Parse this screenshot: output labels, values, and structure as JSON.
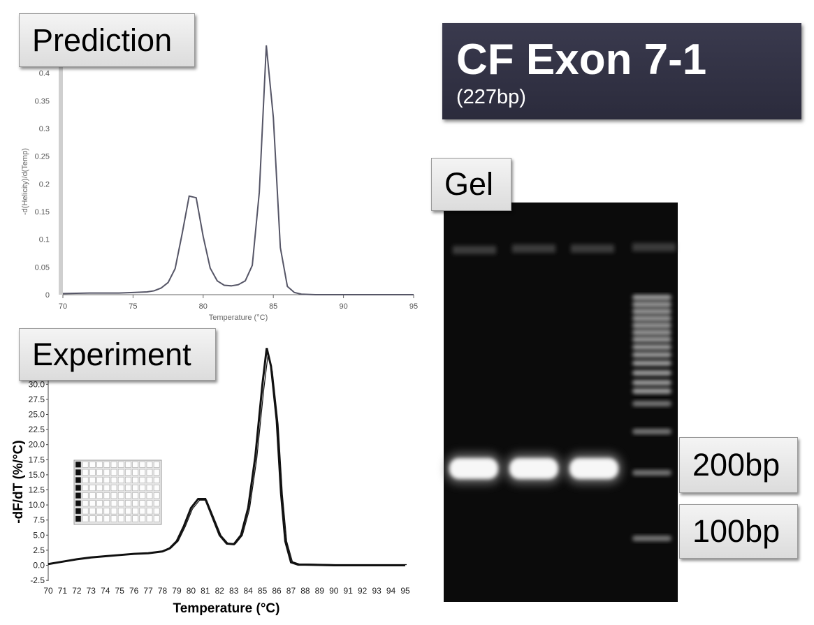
{
  "header": {
    "title": "CF Exon 7-1",
    "subtitle": "(227bp)"
  },
  "labels": {
    "prediction": "Prediction",
    "experiment": "Experiment",
    "gel": "Gel",
    "marker_200": "200bp",
    "marker_100": "100bp"
  },
  "colors": {
    "title_bg": "#32324a",
    "prediction_line": "#555566",
    "experiment_line": "#111111",
    "gel_bg": "#0b0b0b"
  },
  "chart_data": [
    {
      "type": "line",
      "name": "prediction",
      "xlabel": "Temperature (°C)",
      "ylabel": "-d(Helicity)/d(Temp)",
      "xlim": [
        70,
        95
      ],
      "ylim": [
        0,
        0.45
      ],
      "x_ticks": [
        "70",
        "75",
        "80",
        "85",
        "90",
        "95"
      ],
      "y_ticks": [
        "0",
        "0.05",
        "0.1",
        "0.15",
        "0.2",
        "0.25",
        "0.3",
        "0.35",
        "0.4"
      ],
      "grid": false,
      "x": [
        70,
        72,
        74,
        75,
        76,
        76.5,
        77,
        77.5,
        78,
        78.5,
        79,
        79.5,
        80,
        80.5,
        81,
        81.5,
        82,
        82.5,
        83,
        83.5,
        84,
        84.5,
        85,
        85.5,
        86,
        86.5,
        87,
        88,
        90,
        95
      ],
      "y": [
        0.002,
        0.003,
        0.003,
        0.004,
        0.005,
        0.007,
        0.012,
        0.022,
        0.047,
        0.11,
        0.178,
        0.175,
        0.105,
        0.048,
        0.025,
        0.017,
        0.016,
        0.018,
        0.025,
        0.053,
        0.185,
        0.45,
        0.32,
        0.085,
        0.015,
        0.004,
        0.001,
        0,
        0,
        0
      ]
    },
    {
      "type": "line",
      "name": "experiment",
      "xlabel": "Temperature (°C)",
      "ylabel": "-dF/dT (%/°C)",
      "xlim": [
        70,
        95
      ],
      "ylim": [
        -2.5,
        30
      ],
      "x_ticks": [
        "70",
        "71",
        "72",
        "73",
        "74",
        "75",
        "76",
        "77",
        "78",
        "79",
        "80",
        "81",
        "82",
        "83",
        "84",
        "85",
        "86",
        "87",
        "88",
        "89",
        "90",
        "91",
        "92",
        "93",
        "94",
        "95"
      ],
      "y_ticks": [
        "-2.5",
        "0.0",
        "2.5",
        "5.0",
        "7.5",
        "10.0",
        "12.5",
        "15.0",
        "17.5",
        "20.0",
        "22.5",
        "25.0",
        "27.5",
        "30.0"
      ],
      "grid": false,
      "x": [
        70,
        71,
        72,
        73,
        74,
        75,
        76,
        77,
        78,
        78.5,
        79,
        79.5,
        80,
        80.5,
        81,
        81.5,
        82,
        82.5,
        83,
        83.5,
        84,
        84.5,
        85,
        85.3,
        85.6,
        86,
        86.3,
        86.6,
        87,
        87.5,
        88,
        90,
        92,
        94,
        95
      ],
      "y": [
        0.2,
        0.6,
        1.0,
        1.3,
        1.5,
        1.7,
        1.9,
        2.0,
        2.3,
        2.8,
        4.0,
        6.5,
        9.5,
        11.0,
        11.0,
        8.0,
        5.0,
        3.6,
        3.5,
        5.0,
        9.5,
        18.0,
        30.0,
        36.0,
        33.0,
        24.0,
        12.0,
        4.0,
        0.5,
        0.1,
        0.1,
        0.0,
        0.0,
        0.0,
        0.0
      ]
    }
  ]
}
